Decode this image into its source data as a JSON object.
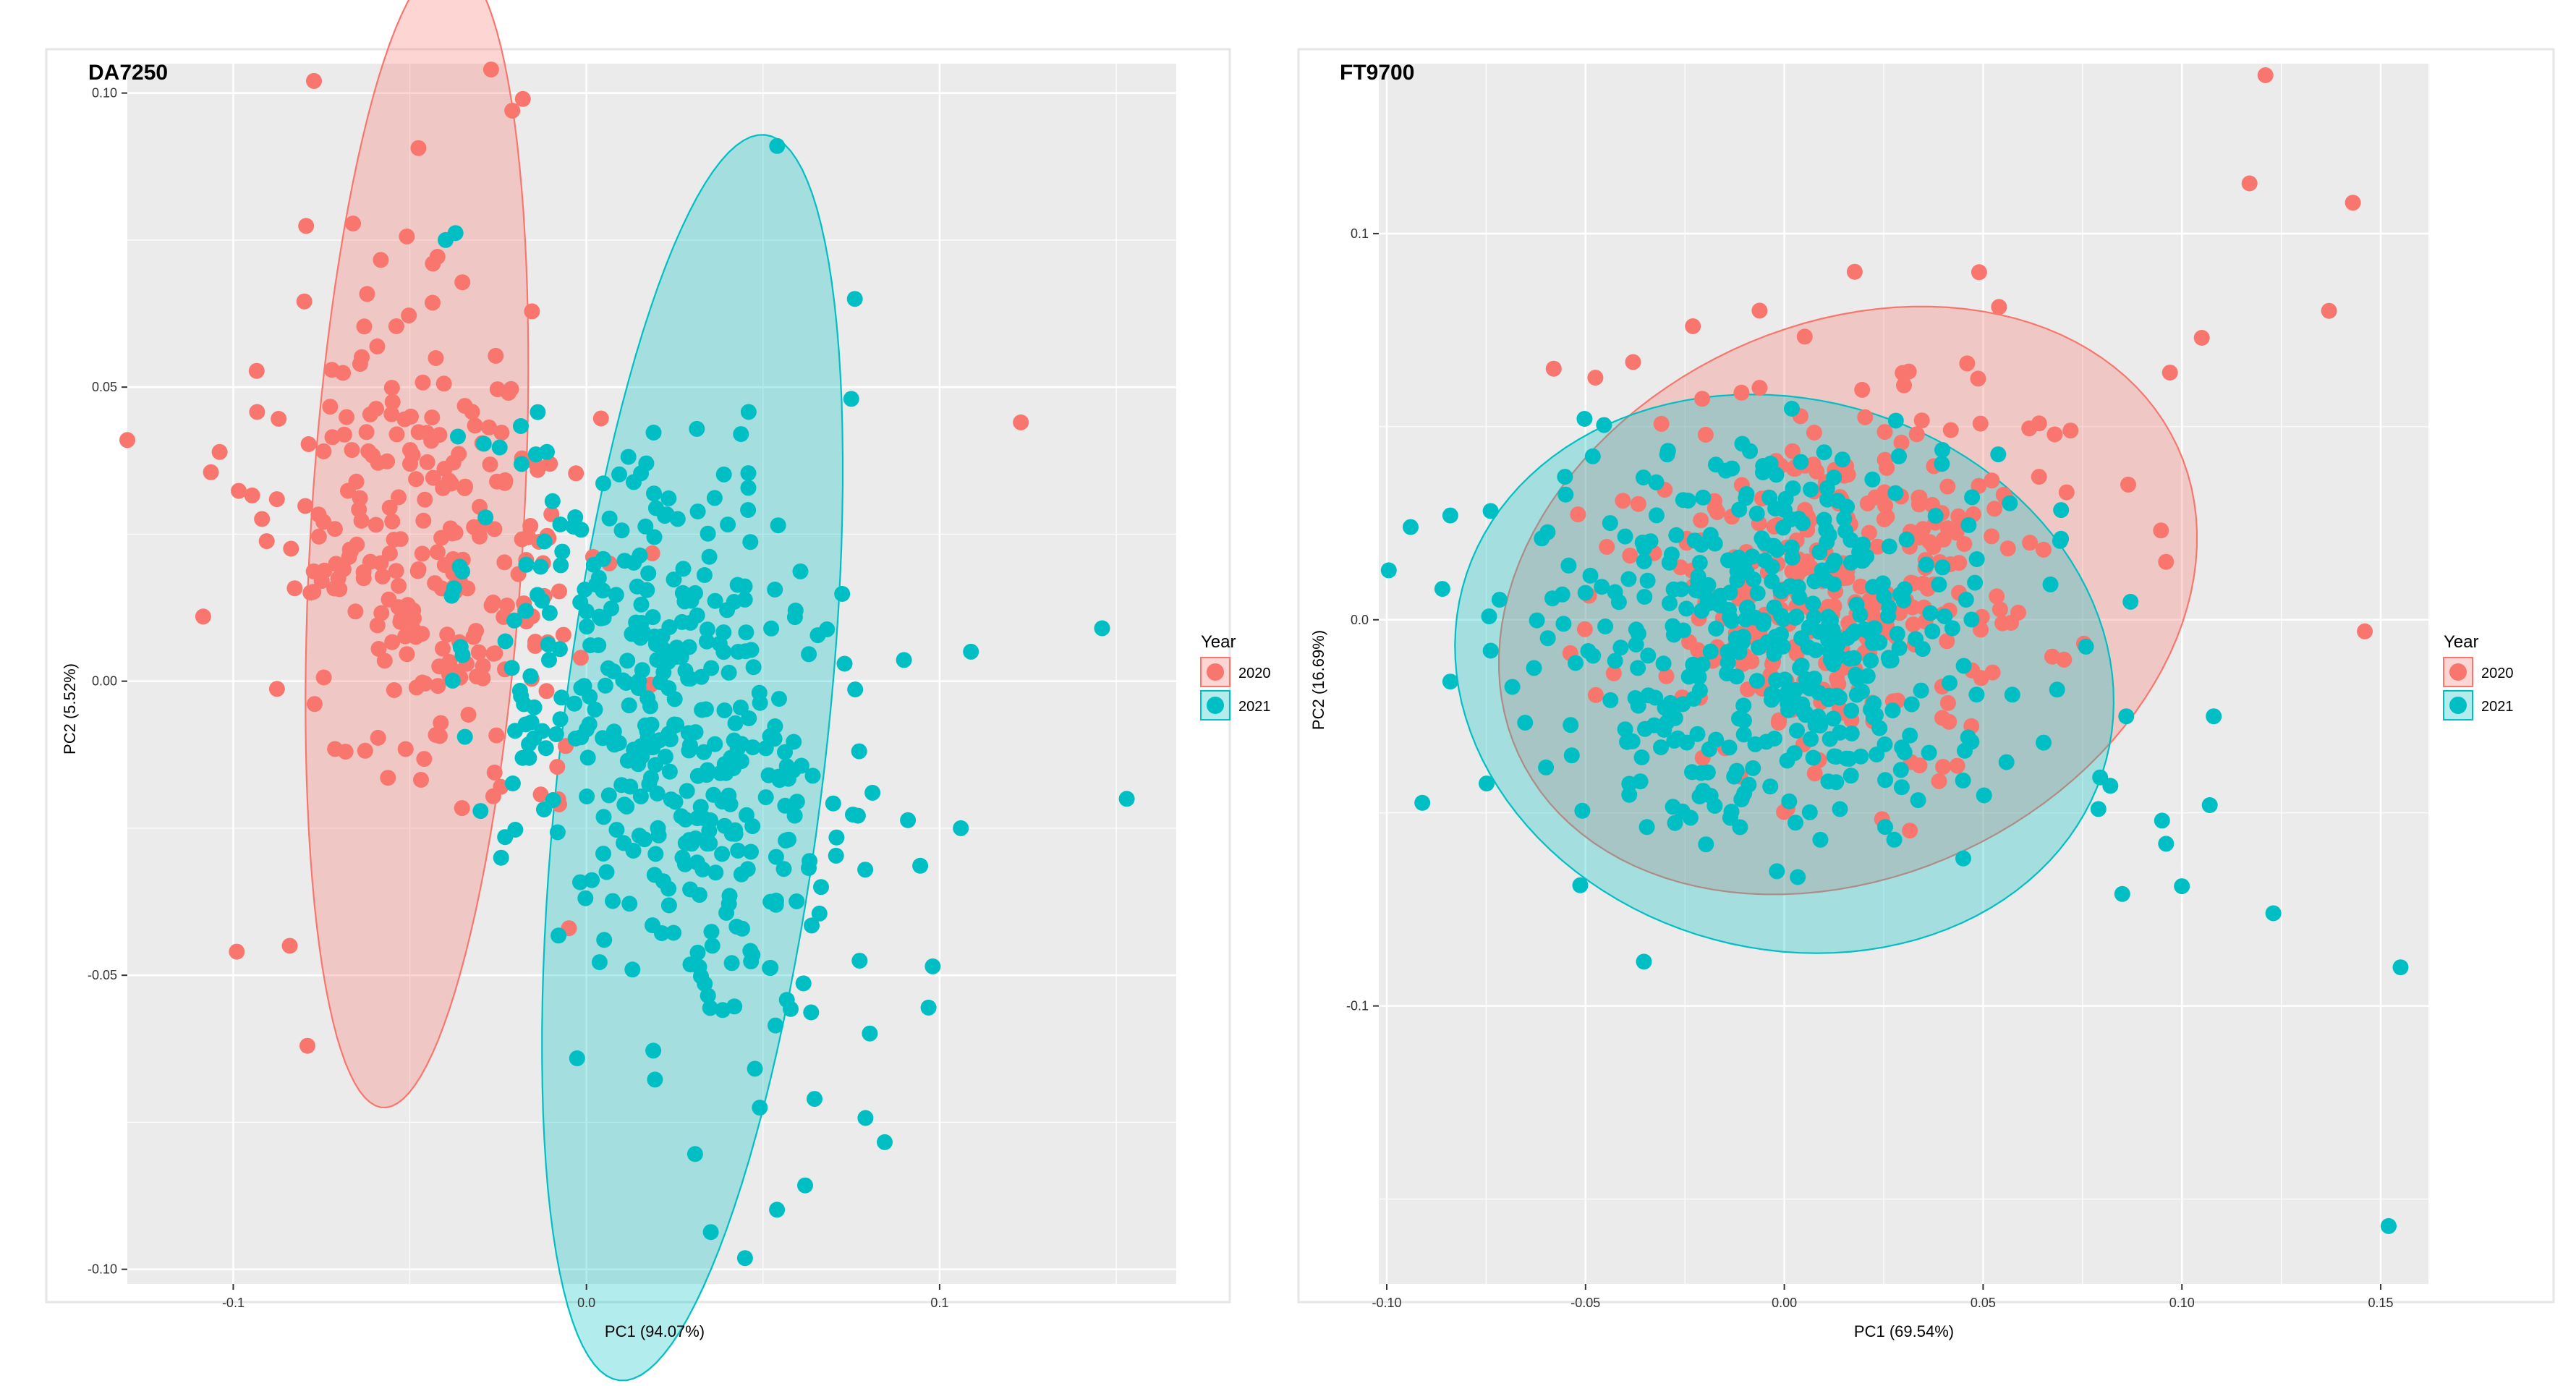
{
  "figure": {
    "legend_title": "Year",
    "legend_placement": "right of each panel"
  },
  "chart_data": [
    {
      "type": "scatter",
      "title": "DA7250",
      "xlabel": "PC1 (94.07%)",
      "ylabel": "PC2 (5.52%)",
      "xlim": [
        -0.13,
        0.167
      ],
      "ylim": [
        -0.1025,
        0.105
      ],
      "xticks": [
        -0.1,
        0.0,
        0.1
      ],
      "xtick_labels": [
        "-0.1",
        "0.0",
        "0.1"
      ],
      "yticks": [
        -0.1,
        -0.05,
        0.0,
        0.05,
        0.1
      ],
      "ytick_labels": [
        "-0.10",
        "-0.05",
        "0.00",
        "0.05",
        "0.10"
      ],
      "grid": true,
      "legend": {
        "title": "Year",
        "entries": [
          "2020",
          "2021"
        ]
      },
      "series": [
        {
          "name": "2020",
          "color": "#F8766D",
          "ellipse": {
            "cx": -0.048,
            "cy": 0.025,
            "rx": 0.098,
            "ry": 0.03,
            "angle_deg": 84
          },
          "points": [
            [
              -0.13,
              0.041
            ],
            [
              0.123,
              0.044
            ],
            [
              -0.099,
              -0.046
            ],
            [
              -0.084,
              -0.045
            ],
            [
              -0.079,
              -0.062
            ],
            [
              -0.027,
              0.104
            ],
            [
              -0.021,
              0.097
            ],
            [
              -0.018,
              0.099
            ]
          ],
          "cluster": {
            "cx": -0.045,
            "cy": 0.022,
            "sx": 0.018,
            "sy": 0.025,
            "rot": 0.9,
            "n": 260,
            "seed": 11
          }
        },
        {
          "name": "2021",
          "color": "#00BFC4",
          "ellipse": {
            "cx": 0.03,
            "cy": -0.013,
            "rx": 0.108,
            "ry": 0.037,
            "angle_deg": 78
          },
          "points": [
            [
              0.054,
              0.091
            ],
            [
              0.146,
              0.009
            ],
            [
              0.153,
              -0.02
            ],
            [
              0.106,
              -0.025
            ],
            [
              0.076,
              0.065
            ],
            [
              0.075,
              0.048
            ]
          ],
          "cluster": {
            "cx": 0.025,
            "cy": -0.012,
            "sx": 0.02,
            "sy": 0.032,
            "rot": 0.85,
            "n": 420,
            "seed": 23
          }
        }
      ]
    },
    {
      "type": "scatter",
      "title": "FT9700",
      "xlabel": "PC1 (69.54%)",
      "ylabel": "PC2 (16.69%)",
      "xlim": [
        -0.102,
        0.162
      ],
      "ylim": [
        -0.172,
        0.144
      ],
      "xticks": [
        -0.1,
        -0.05,
        0.0,
        0.05,
        0.1,
        0.15
      ],
      "xtick_labels": [
        "-0.10",
        "-0.05",
        "0.00",
        "0.05",
        "0.10",
        "0.15"
      ],
      "yticks": [
        -0.1,
        0.0,
        0.1
      ],
      "ytick_labels": [
        "-0.1",
        "0.0",
        "0.1"
      ],
      "grid": true,
      "legend": {
        "title": "Year",
        "entries": [
          "2020",
          "2021"
        ]
      },
      "series": [
        {
          "name": "2020",
          "color": "#F8766D",
          "ellipse": {
            "cx": 0.016,
            "cy": 0.005,
            "rx": 0.092,
            "ry": 0.071,
            "angle_deg": 28
          },
          "points": [
            [
              0.121,
              0.141
            ],
            [
              0.117,
              0.113
            ],
            [
              0.143,
              0.108
            ],
            [
              0.137,
              0.08
            ],
            [
              0.105,
              0.073
            ],
            [
              0.097,
              0.064
            ],
            [
              0.096,
              0.015
            ],
            [
              0.146,
              -0.003
            ],
            [
              0.049,
              0.09
            ],
            [
              0.054,
              0.081
            ],
            [
              -0.023,
              0.076
            ],
            [
              0.068,
              0.048
            ],
            [
              0.072,
              0.049
            ],
            [
              0.071,
              0.033
            ],
            [
              -0.058,
              0.065
            ]
          ],
          "cluster": {
            "cx": 0.015,
            "cy": 0.012,
            "sx": 0.026,
            "sy": 0.024,
            "rot": 0.5,
            "n": 320,
            "seed": 37
          }
        },
        {
          "name": "2021",
          "color": "#00BFC4",
          "ellipse": {
            "cx": 0.0,
            "cy": -0.014,
            "rx": 0.084,
            "ry": 0.071,
            "angle_deg": -18
          },
          "points": [
            [
              -0.094,
              0.024
            ],
            [
              -0.084,
              0.027
            ],
            [
              -0.086,
              0.008
            ],
            [
              -0.084,
              -0.016
            ],
            [
              0.152,
              -0.157
            ],
            [
              0.155,
              -0.09
            ],
            [
              0.123,
              -0.076
            ],
            [
              0.108,
              -0.025
            ],
            [
              0.107,
              -0.048
            ],
            [
              0.096,
              -0.058
            ],
            [
              0.1,
              -0.069
            ],
            [
              0.086,
              -0.025
            ],
            [
              0.085,
              -0.071
            ],
            [
              0.082,
              -0.043
            ],
            [
              0.079,
              -0.049
            ],
            [
              0.095,
              -0.052
            ]
          ],
          "cluster": {
            "cx": -0.005,
            "cy": -0.005,
            "sx": 0.028,
            "sy": 0.026,
            "rot": -0.3,
            "n": 440,
            "seed": 53
          }
        }
      ]
    }
  ]
}
